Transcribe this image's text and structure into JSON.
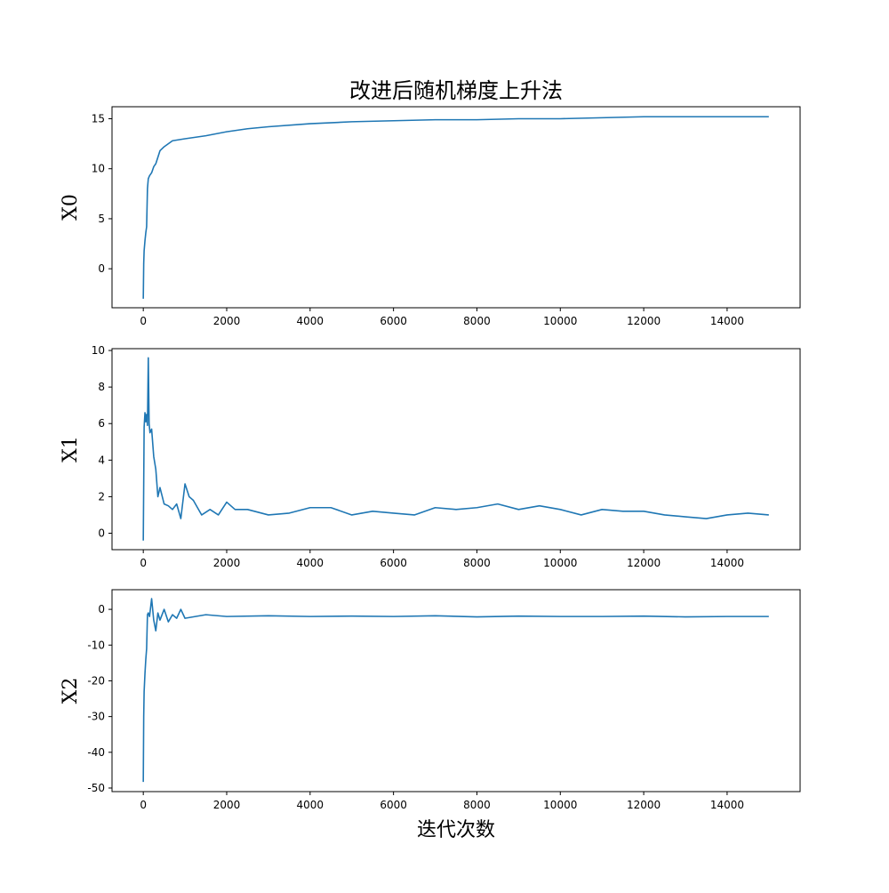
{
  "chart_data": [
    {
      "type": "line",
      "title": "改进后随机梯度上升法",
      "ylabel": "X0",
      "x": [
        0,
        10,
        20,
        40,
        60,
        80,
        100,
        120,
        150,
        200,
        250,
        300,
        400,
        500,
        700,
        1000,
        1500,
        2000,
        2500,
        3000,
        4000,
        5000,
        6000,
        7000,
        8000,
        9000,
        10000,
        11000,
        12000,
        13000,
        14000,
        15000
      ],
      "series": [
        {
          "color": "#1f77b4",
          "values": [
            -3,
            0.5,
            1.8,
            2.8,
            3.6,
            4.2,
            8.0,
            9.0,
            9.3,
            9.6,
            10.2,
            10.5,
            11.8,
            12.2,
            12.8,
            13.0,
            13.3,
            13.7,
            14.0,
            14.2,
            14.5,
            14.7,
            14.8,
            14.9,
            14.9,
            15.0,
            15.0,
            15.1,
            15.2,
            15.2,
            15.2,
            15.2
          ]
        }
      ],
      "xlim": [
        -750,
        15750
      ],
      "xticks": [
        0,
        2000,
        4000,
        6000,
        8000,
        10000,
        12000,
        14000
      ],
      "ylim": [
        -3.9,
        16.2
      ],
      "yticks": [
        0,
        5,
        10,
        15
      ],
      "grid": false
    },
    {
      "type": "line",
      "ylabel": "X1",
      "x": [
        0,
        20,
        40,
        60,
        80,
        100,
        120,
        140,
        160,
        200,
        250,
        300,
        350,
        400,
        500,
        600,
        700,
        800,
        900,
        1000,
        1100,
        1200,
        1400,
        1600,
        1800,
        2000,
        2200,
        2500,
        3000,
        3500,
        4000,
        4500,
        5000,
        5500,
        6000,
        6500,
        7000,
        7500,
        8000,
        8500,
        9000,
        9500,
        10000,
        10500,
        11000,
        11500,
        12000,
        12500,
        13000,
        13500,
        14000,
        14500,
        15000
      ],
      "series": [
        {
          "color": "#1f77b4",
          "values": [
            -0.4,
            5.8,
            6.6,
            6.1,
            6.5,
            5.9,
            9.6,
            6.0,
            5.5,
            5.7,
            4.2,
            3.5,
            2.0,
            2.5,
            1.6,
            1.5,
            1.3,
            1.6,
            0.8,
            2.7,
            2.0,
            1.8,
            1.0,
            1.3,
            1.0,
            1.7,
            1.3,
            1.3,
            1.0,
            1.1,
            1.4,
            1.4,
            1.0,
            1.2,
            1.1,
            1.0,
            1.4,
            1.3,
            1.4,
            1.6,
            1.3,
            1.5,
            1.3,
            1.0,
            1.3,
            1.2,
            1.2,
            1.0,
            0.9,
            0.8,
            1.0,
            1.1,
            1.0
          ]
        }
      ],
      "xlim": [
        -750,
        15750
      ],
      "xticks": [
        0,
        2000,
        4000,
        6000,
        8000,
        10000,
        12000,
        14000
      ],
      "ylim": [
        -0.9,
        10.1
      ],
      "yticks": [
        0,
        2,
        4,
        6,
        8,
        10
      ],
      "grid": false
    },
    {
      "type": "line",
      "ylabel": "X2",
      "xlabel": "迭代次数",
      "x": [
        0,
        10,
        20,
        40,
        60,
        80,
        100,
        120,
        150,
        200,
        250,
        300,
        350,
        400,
        500,
        600,
        700,
        800,
        900,
        1000,
        1500,
        2000,
        3000,
        4000,
        5000,
        6000,
        7000,
        8000,
        9000,
        10000,
        11000,
        12000,
        13000,
        14000,
        15000
      ],
      "series": [
        {
          "color": "#1f77b4",
          "values": [
            -48.3,
            -30,
            -23,
            -18,
            -14,
            -11,
            -1.5,
            -1.0,
            -2.0,
            3.0,
            -3.0,
            -6.0,
            -1.0,
            -3.0,
            0.0,
            -3.5,
            -1.5,
            -2.5,
            0.0,
            -2.5,
            -1.5,
            -2.0,
            -1.8,
            -2.0,
            -1.9,
            -2.0,
            -1.8,
            -2.1,
            -1.9,
            -2.0,
            -2.0,
            -1.9,
            -2.1,
            -2.0,
            -2.0
          ]
        }
      ],
      "xlim": [
        -750,
        15750
      ],
      "xticks": [
        0,
        2000,
        4000,
        6000,
        8000,
        10000,
        12000,
        14000
      ],
      "ylim": [
        -51,
        5.5
      ],
      "yticks": [
        -50,
        -40,
        -30,
        -20,
        -10,
        0
      ],
      "grid": false
    }
  ]
}
